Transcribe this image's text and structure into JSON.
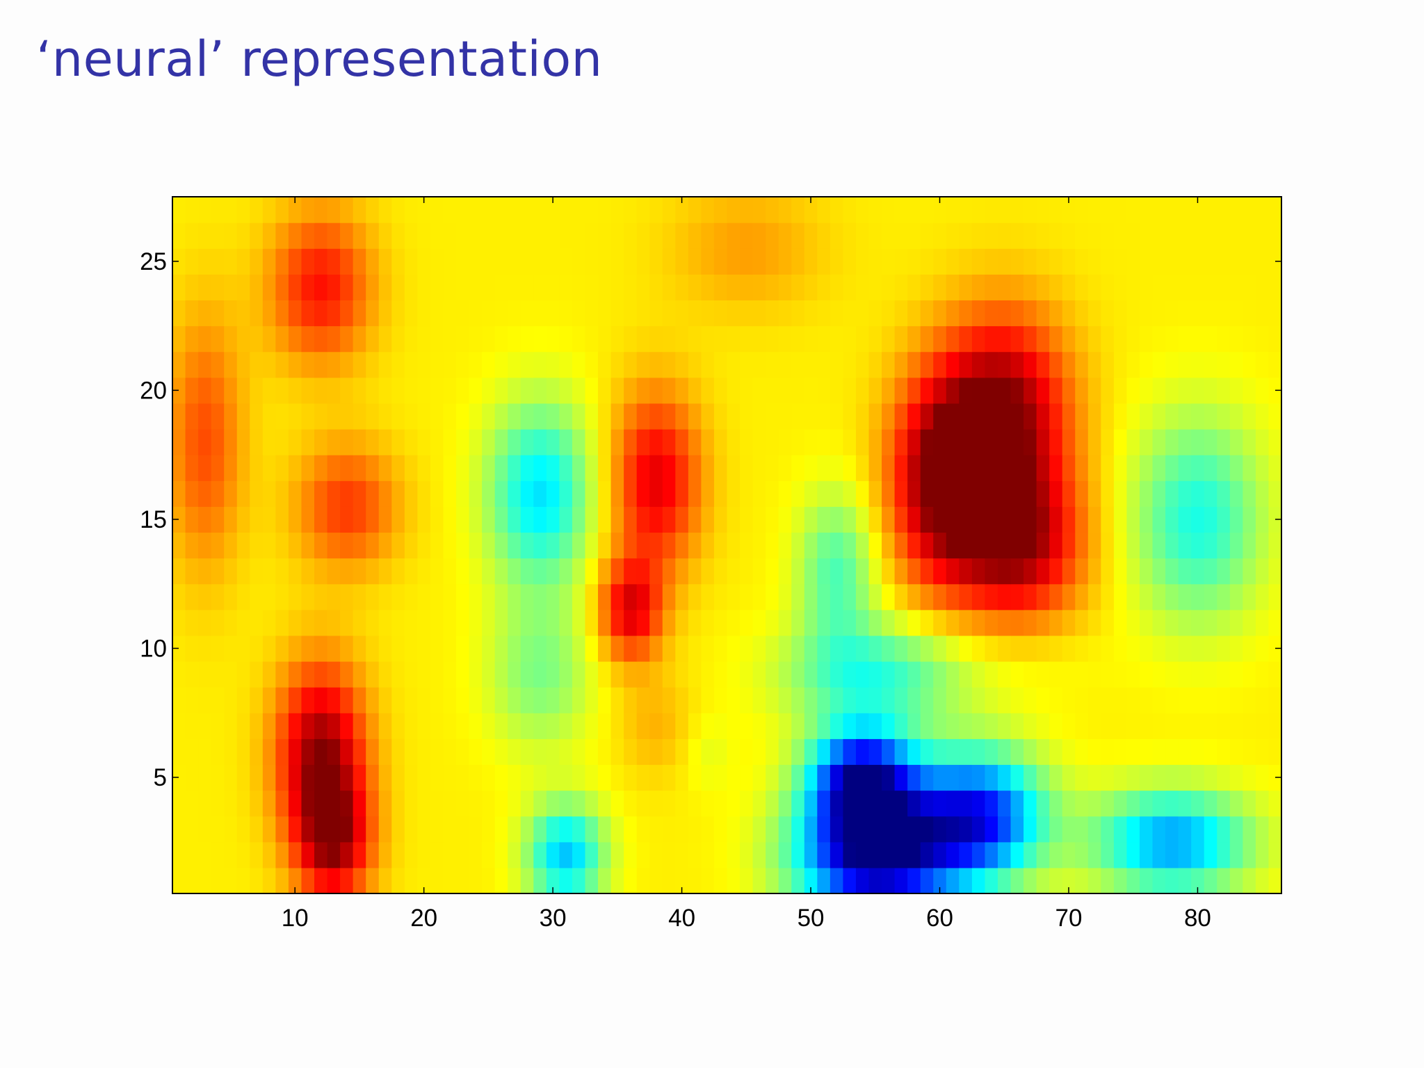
{
  "slide": {
    "title": "‘neural’ representation"
  },
  "chart_data": {
    "type": "heatmap",
    "title": "",
    "xlabel": "",
    "ylabel": "",
    "xlim": [
      0.5,
      86.5
    ],
    "ylim": [
      0.5,
      27.5
    ],
    "x_ticks": [
      10,
      20,
      30,
      40,
      50,
      60,
      70,
      80
    ],
    "y_ticks": [
      5,
      10,
      15,
      20,
      25
    ],
    "colormap": "jet",
    "grid": false,
    "value_range": [
      0,
      1
    ],
    "blobs": [
      {
        "x": 12,
        "y": 6,
        "sx": 3.5,
        "sy": 3.5,
        "value": 0.97
      },
      {
        "x": 13,
        "y": 2.5,
        "sx": 3,
        "sy": 2.5,
        "value": 0.92
      },
      {
        "x": 12,
        "y": 24,
        "sx": 4,
        "sy": 3,
        "value": 0.86
      },
      {
        "x": 14,
        "y": 15.5,
        "sx": 4,
        "sy": 2.5,
        "value": 0.82
      },
      {
        "x": 3,
        "y": 18,
        "sx": 3,
        "sy": 5,
        "value": 0.8
      },
      {
        "x": 38,
        "y": 16.5,
        "sx": 3.5,
        "sy": 3.5,
        "value": 0.9
      },
      {
        "x": 36,
        "y": 11.5,
        "sx": 2.5,
        "sy": 2,
        "value": 0.9
      },
      {
        "x": 38,
        "y": 7,
        "sx": 3,
        "sy": 2,
        "value": 0.7
      },
      {
        "x": 60,
        "y": 16.5,
        "sx": 4,
        "sy": 4,
        "value": 0.97
      },
      {
        "x": 65,
        "y": 19,
        "sx": 5,
        "sy": 4,
        "value": 1.0
      },
      {
        "x": 66,
        "y": 14,
        "sx": 5,
        "sy": 3,
        "value": 0.95
      },
      {
        "x": 29,
        "y": 16,
        "sx": 4,
        "sy": 3.5,
        "value": 0.35
      },
      {
        "x": 29,
        "y": 9,
        "sx": 4,
        "sy": 3,
        "value": 0.5
      },
      {
        "x": 80,
        "y": 15,
        "sx": 5,
        "sy": 4,
        "value": 0.4
      },
      {
        "x": 52,
        "y": 13,
        "sx": 3,
        "sy": 3,
        "value": 0.45
      },
      {
        "x": 55,
        "y": 2,
        "sx": 6,
        "sy": 2.5,
        "value": 0.0
      },
      {
        "x": 54,
        "y": 5,
        "sx": 4,
        "sy": 2,
        "value": 0.1
      },
      {
        "x": 63,
        "y": 3.5,
        "sx": 5,
        "sy": 2.5,
        "value": 0.15
      },
      {
        "x": 78,
        "y": 2.5,
        "sx": 6,
        "sy": 2,
        "value": 0.28
      },
      {
        "x": 31,
        "y": 2,
        "sx": 3,
        "sy": 2,
        "value": 0.32
      },
      {
        "x": 55,
        "y": 9,
        "sx": 7,
        "sy": 2,
        "value": 0.42
      },
      {
        "x": 68,
        "y": 9.5,
        "sx": 5,
        "sy": 1.5,
        "value": 0.62
      },
      {
        "x": 42,
        "y": 6,
        "sx": 2,
        "sy": 1.5,
        "value": 0.6
      },
      {
        "x": 45,
        "y": 25.5,
        "sx": 6,
        "sy": 2.5,
        "value": 0.72
      }
    ]
  }
}
